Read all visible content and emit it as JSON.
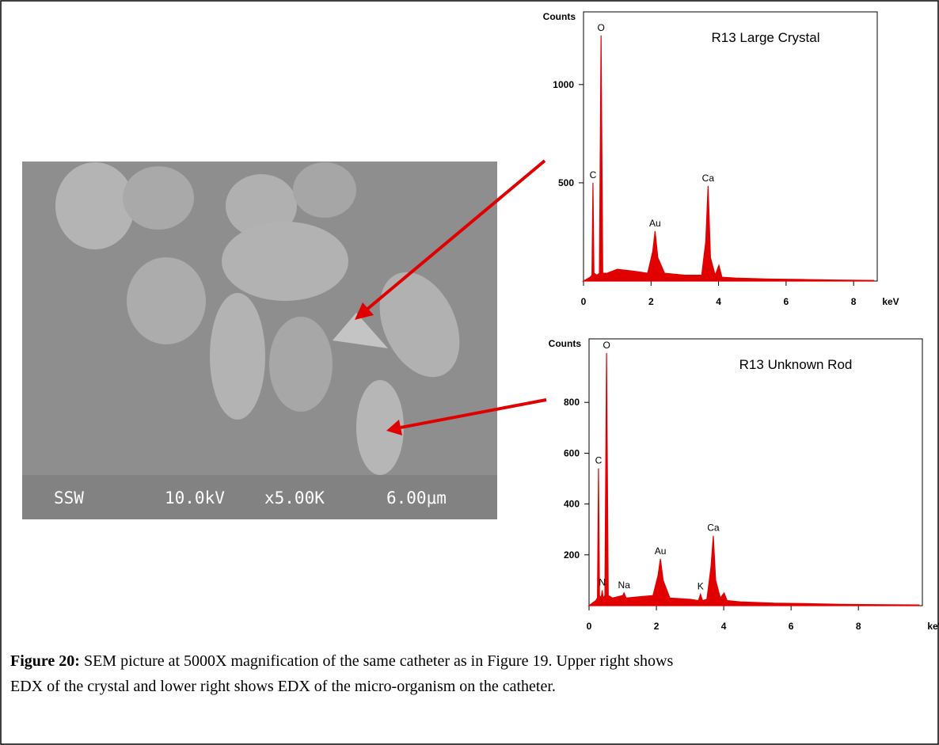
{
  "chart_data": [
    {
      "type": "line",
      "title": "R13 Large Crystal",
      "y_label": "Counts",
      "x_label": "keV",
      "x": [
        0.1,
        0.2,
        0.25,
        0.28,
        0.31,
        0.4,
        0.47,
        0.52,
        0.57,
        0.7,
        1.0,
        1.5,
        1.9,
        2.05,
        2.12,
        2.2,
        2.4,
        3.0,
        3.5,
        3.62,
        3.69,
        3.76,
        3.9,
        4.01,
        4.1,
        4.5,
        5.5,
        6.5,
        7.5,
        8.6
      ],
      "series": [
        {
          "color": "#e00000",
          "values": [
            10,
            20,
            30,
            500,
            40,
            30,
            40,
            1250,
            40,
            40,
            60,
            50,
            40,
            150,
            254,
            120,
            40,
            30,
            30,
            200,
            484,
            120,
            30,
            80,
            20,
            15,
            10,
            8,
            5,
            3
          ]
        }
      ],
      "xlim": [
        0,
        8.7
      ],
      "ylim": [
        0,
        1370
      ],
      "xticks": [
        0,
        2,
        4,
        6,
        8
      ],
      "yticks": [
        500,
        1000
      ],
      "peaks": [
        {
          "label": "C",
          "x": 0.28,
          "y": 500
        },
        {
          "label": "O",
          "x": 0.52,
          "y": 1250
        },
        {
          "label": "Au",
          "x": 2.12,
          "y": 254
        },
        {
          "label": "Ca",
          "x": 3.69,
          "y": 484
        }
      ]
    },
    {
      "type": "line",
      "title": "R13 Unknown Rod",
      "y_label": "Counts",
      "x_label": "keV",
      "x": [
        0.1,
        0.2,
        0.25,
        0.28,
        0.31,
        0.36,
        0.39,
        0.42,
        0.47,
        0.52,
        0.57,
        0.7,
        1.0,
        1.04,
        1.1,
        1.5,
        1.9,
        2.05,
        2.12,
        2.2,
        2.4,
        3.0,
        3.25,
        3.31,
        3.37,
        3.5,
        3.62,
        3.69,
        3.76,
        3.9,
        4.01,
        4.1,
        4.5,
        5.5,
        6.5,
        7.5,
        8.5,
        9.8
      ],
      "series": [
        {
          "color": "#e00000",
          "values": [
            10,
            20,
            30,
            540,
            40,
            30,
            60,
            30,
            40,
            994,
            40,
            30,
            40,
            50,
            30,
            35,
            40,
            120,
            184,
            100,
            30,
            25,
            20,
            45,
            20,
            25,
            150,
            275,
            100,
            30,
            50,
            20,
            15,
            10,
            8,
            5,
            4,
            3
          ]
        }
      ],
      "xlim": [
        0,
        9.9
      ],
      "ylim": [
        0,
        1050
      ],
      "xticks": [
        0,
        2,
        4,
        6,
        8
      ],
      "yticks": [
        200,
        400,
        600,
        800
      ],
      "peaks": [
        {
          "label": "C",
          "x": 0.28,
          "y": 540
        },
        {
          "label": "O",
          "x": 0.52,
          "y": 994
        },
        {
          "label": "N",
          "x": 0.39,
          "y": 60
        },
        {
          "label": "Na",
          "x": 1.04,
          "y": 50
        },
        {
          "label": "Au",
          "x": 2.12,
          "y": 184
        },
        {
          "label": "K",
          "x": 3.31,
          "y": 45
        },
        {
          "label": "Ca",
          "x": 3.69,
          "y": 275
        }
      ]
    }
  ],
  "sem": {
    "labels": [
      "SSW",
      "10.0kV",
      "x5.00K",
      "6.00μm"
    ]
  },
  "caption": {
    "label": "Figure 20:",
    "text": "SEM picture at 5000X magnification of the same catheter as in Figure 19. Upper right shows",
    "text2": "EDX of the crystal and lower right shows EDX of the micro-organism on the catheter."
  }
}
